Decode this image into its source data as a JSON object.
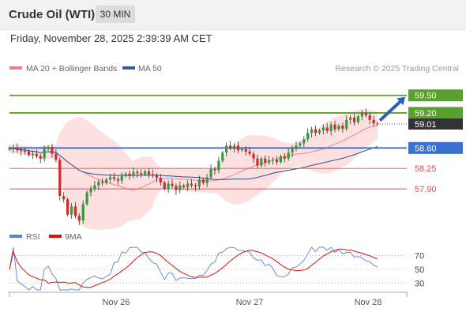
{
  "header": {
    "title": "Crude Oil (WTI)",
    "timeframe": "30 MIN",
    "timestamp": "Friday, November 28, 2025 2:39:39 AM CET"
  },
  "credit": "Research © 2025 Trading Central",
  "colors": {
    "resistance": "#5aa02c",
    "pivot": "#3a70d0",
    "support": "#e05050",
    "bull_candle": "#2e9e3a",
    "bear_candle": "#d42a2a",
    "bollinger_fill": "#fde0e0",
    "ma20": "#ec8080",
    "ma50": "#3b5a99",
    "rsi": "#5f7fdd",
    "rsi_ma": "#e01010",
    "arrow": "#2f5fb0",
    "last_price": "#333333"
  },
  "chart_data": [
    {
      "type": "candlestick",
      "legend": [
        {
          "name": "MA 20 + Bollinger Bands",
          "color": "#ec8080"
        },
        {
          "name": "MA 50",
          "color": "#3b5a99"
        }
      ],
      "x_tick_labels": [
        "Nov 26",
        "Nov 27",
        "Nov 28"
      ],
      "ylim": [
        57.28,
        59.78
      ],
      "levels": [
        {
          "value": 59.5,
          "label": "59.50",
          "kind": "resistance"
        },
        {
          "value": 59.2,
          "label": "59.20",
          "kind": "resistance"
        },
        {
          "value": 58.6,
          "label": "58.60",
          "kind": "pivot"
        },
        {
          "value": 58.25,
          "label": "58.25",
          "kind": "support"
        },
        {
          "value": 57.9,
          "label": "57.90",
          "kind": "support"
        }
      ],
      "last_price": {
        "value": 59.01,
        "label": "59.01"
      },
      "arrow_target": 59.5,
      "closes": [
        58.58,
        58.6,
        58.56,
        58.55,
        58.54,
        58.48,
        58.5,
        58.46,
        58.42,
        58.58,
        58.62,
        58.5,
        58.4,
        57.78,
        57.72,
        57.46,
        57.6,
        57.44,
        57.36,
        57.64,
        57.84,
        57.9,
        57.96,
        58.02,
        58.0,
        58.06,
        58.1,
        58.07,
        58.04,
        58.12,
        58.16,
        58.12,
        58.19,
        58.17,
        58.15,
        58.2,
        58.15,
        58.13,
        58.09,
        58.01,
        57.9,
        57.99,
        57.95,
        57.88,
        57.96,
        57.93,
        57.99,
        57.96,
        57.94,
        58.06,
        58.0,
        58.1,
        58.24,
        58.22,
        58.38,
        58.52,
        58.64,
        58.6,
        58.64,
        58.56,
        58.58,
        58.54,
        58.5,
        58.42,
        58.3,
        58.42,
        58.35,
        58.39,
        58.4,
        58.36,
        58.46,
        58.42,
        58.52,
        58.6,
        58.64,
        58.68,
        58.75,
        58.86,
        58.92,
        58.86,
        58.9,
        58.95,
        58.89,
        59.0,
        58.92,
        58.98,
        58.93,
        59.08,
        59.12,
        59.04,
        59.14,
        59.2,
        59.16,
        59.08,
        59.02,
        59.01
      ],
      "rsi": {
        "legend": [
          {
            "name": "RSI",
            "color": "#5f7fdd"
          },
          {
            "name": "9MA",
            "color": "#e01010"
          }
        ],
        "levels": [
          70,
          50,
          30
        ],
        "ylim": [
          20,
          82
        ]
      }
    }
  ]
}
